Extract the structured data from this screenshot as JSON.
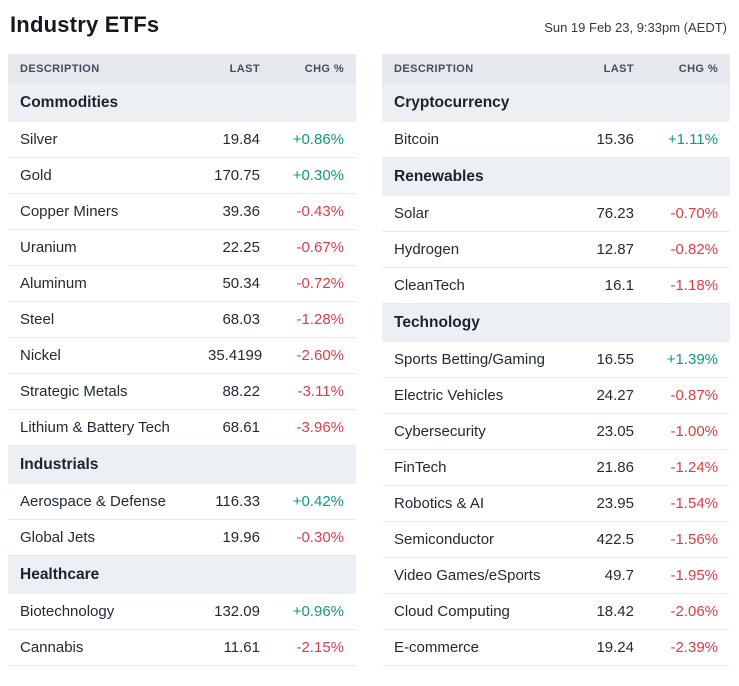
{
  "header": {
    "title": "Industry ETFs",
    "timestamp": "Sun 19 Feb 23, 9:33pm (AEDT)"
  },
  "columns": {
    "description": "DESCRIPTION",
    "last": "LAST",
    "chg": "CHG %"
  },
  "colors": {
    "positive": "#0f9981",
    "negative": "#dc3c4a"
  },
  "left_table": {
    "sections": [
      {
        "name": "Commodities",
        "rows": [
          {
            "description": "Silver",
            "last": "19.84",
            "chg": "+0.86%"
          },
          {
            "description": "Gold",
            "last": "170.75",
            "chg": "+0.30%"
          },
          {
            "description": "Copper Miners",
            "last": "39.36",
            "chg": "-0.43%"
          },
          {
            "description": "Uranium",
            "last": "22.25",
            "chg": "-0.67%"
          },
          {
            "description": "Aluminum",
            "last": "50.34",
            "chg": "-0.72%"
          },
          {
            "description": "Steel",
            "last": "68.03",
            "chg": "-1.28%"
          },
          {
            "description": "Nickel",
            "last": "35.4199",
            "chg": "-2.60%"
          },
          {
            "description": "Strategic Metals",
            "last": "88.22",
            "chg": "-3.11%"
          },
          {
            "description": "Lithium & Battery Tech",
            "last": "68.61",
            "chg": "-3.96%"
          }
        ]
      },
      {
        "name": "Industrials",
        "rows": [
          {
            "description": "Aerospace & Defense",
            "last": "116.33",
            "chg": "+0.42%"
          },
          {
            "description": "Global Jets",
            "last": "19.96",
            "chg": "-0.30%"
          }
        ]
      },
      {
        "name": "Healthcare",
        "rows": [
          {
            "description": "Biotechnology",
            "last": "132.09",
            "chg": "+0.96%"
          },
          {
            "description": "Cannabis",
            "last": "11.61",
            "chg": "-2.15%"
          }
        ]
      }
    ]
  },
  "right_table": {
    "sections": [
      {
        "name": "Cryptocurrency",
        "rows": [
          {
            "description": "Bitcoin",
            "last": "15.36",
            "chg": "+1.11%"
          }
        ]
      },
      {
        "name": "Renewables",
        "rows": [
          {
            "description": "Solar",
            "last": "76.23",
            "chg": "-0.70%"
          },
          {
            "description": "Hydrogen",
            "last": "12.87",
            "chg": "-0.82%"
          },
          {
            "description": "CleanTech",
            "last": "16.1",
            "chg": "-1.18%"
          }
        ]
      },
      {
        "name": "Technology",
        "rows": [
          {
            "description": "Sports Betting/Gaming",
            "last": "16.55",
            "chg": "+1.39%"
          },
          {
            "description": "Electric Vehicles",
            "last": "24.27",
            "chg": "-0.87%"
          },
          {
            "description": "Cybersecurity",
            "last": "23.05",
            "chg": "-1.00%"
          },
          {
            "description": "FinTech",
            "last": "21.86",
            "chg": "-1.24%"
          },
          {
            "description": "Robotics & AI",
            "last": "23.95",
            "chg": "-1.54%"
          },
          {
            "description": "Semiconductor",
            "last": "422.5",
            "chg": "-1.56%"
          },
          {
            "description": "Video Games/eSports",
            "last": "49.7",
            "chg": "-1.95%"
          },
          {
            "description": "Cloud Computing",
            "last": "18.42",
            "chg": "-2.06%"
          },
          {
            "description": "E-commerce",
            "last": "19.24",
            "chg": "-2.39%"
          }
        ]
      }
    ]
  }
}
